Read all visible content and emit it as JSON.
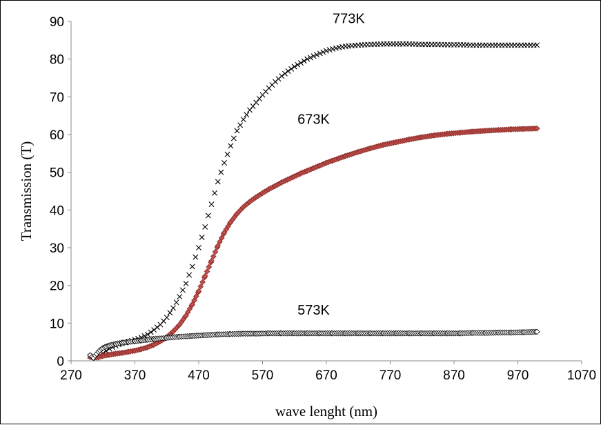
{
  "chart_data": {
    "type": "scatter",
    "title": "",
    "xlabel": "wave lenght (nm)",
    "ylabel": "Transmission (T)",
    "xlim": [
      270,
      1070
    ],
    "ylim": [
      0,
      90
    ],
    "xticks": [
      270,
      370,
      470,
      570,
      670,
      770,
      870,
      970,
      1070
    ],
    "yticks": [
      0,
      10,
      20,
      30,
      40,
      50,
      60,
      70,
      80,
      90
    ],
    "grid": false,
    "legend": "none",
    "series": [
      {
        "name": "773K",
        "marker": "cross",
        "color": "#000000",
        "points": [
          [
            300,
            1.2
          ],
          [
            310,
            0.8
          ],
          [
            320,
            2.0
          ],
          [
            330,
            3.2
          ],
          [
            340,
            4.0
          ],
          [
            350,
            4.6
          ],
          [
            360,
            5.1
          ],
          [
            370,
            5.6
          ],
          [
            380,
            6.2
          ],
          [
            390,
            7.0
          ],
          [
            400,
            8.2
          ],
          [
            410,
            9.6
          ],
          [
            420,
            11.5
          ],
          [
            430,
            14.0
          ],
          [
            440,
            17.0
          ],
          [
            450,
            20.5
          ],
          [
            460,
            25.0
          ],
          [
            470,
            30.0
          ],
          [
            480,
            35.5
          ],
          [
            490,
            41.5
          ],
          [
            500,
            47.5
          ],
          [
            510,
            52.5
          ],
          [
            520,
            57.0
          ],
          [
            530,
            61.0
          ],
          [
            540,
            64.0
          ],
          [
            550,
            66.5
          ],
          [
            560,
            68.5
          ],
          [
            570,
            70.5
          ],
          [
            580,
            72.3
          ],
          [
            590,
            74.0
          ],
          [
            600,
            75.5
          ],
          [
            610,
            76.8
          ],
          [
            620,
            78.0
          ],
          [
            630,
            79.0
          ],
          [
            640,
            80.0
          ],
          [
            650,
            80.8
          ],
          [
            660,
            81.5
          ],
          [
            670,
            82.2
          ],
          [
            680,
            82.7
          ],
          [
            690,
            83.1
          ],
          [
            700,
            83.4
          ],
          [
            720,
            83.7
          ],
          [
            740,
            83.9
          ],
          [
            760,
            84.0
          ],
          [
            780,
            84.0
          ],
          [
            800,
            84.0
          ],
          [
            820,
            83.9
          ],
          [
            840,
            83.9
          ],
          [
            860,
            83.8
          ],
          [
            880,
            83.8
          ],
          [
            900,
            83.7
          ],
          [
            920,
            83.7
          ],
          [
            940,
            83.7
          ],
          [
            960,
            83.7
          ],
          [
            980,
            83.7
          ],
          [
            1000,
            83.7
          ]
        ]
      },
      {
        "name": "673K",
        "marker": "filled-diamond",
        "color": "#c0504d",
        "points": [
          [
            300,
            1.0
          ],
          [
            310,
            0.9
          ],
          [
            320,
            1.3
          ],
          [
            330,
            1.6
          ],
          [
            340,
            1.9
          ],
          [
            350,
            2.1
          ],
          [
            360,
            2.4
          ],
          [
            370,
            2.7
          ],
          [
            380,
            3.1
          ],
          [
            390,
            3.6
          ],
          [
            400,
            4.3
          ],
          [
            410,
            5.2
          ],
          [
            420,
            6.3
          ],
          [
            430,
            7.8
          ],
          [
            440,
            9.6
          ],
          [
            450,
            12.0
          ],
          [
            460,
            15.0
          ],
          [
            470,
            18.5
          ],
          [
            480,
            22.5
          ],
          [
            490,
            26.5
          ],
          [
            500,
            30.5
          ],
          [
            510,
            34.0
          ],
          [
            520,
            36.8
          ],
          [
            530,
            39.0
          ],
          [
            540,
            40.8
          ],
          [
            550,
            42.2
          ],
          [
            560,
            43.4
          ],
          [
            570,
            44.5
          ],
          [
            580,
            45.5
          ],
          [
            590,
            46.4
          ],
          [
            600,
            47.3
          ],
          [
            610,
            48.1
          ],
          [
            620,
            48.9
          ],
          [
            630,
            49.7
          ],
          [
            640,
            50.4
          ],
          [
            650,
            51.1
          ],
          [
            660,
            51.8
          ],
          [
            670,
            52.5
          ],
          [
            680,
            53.1
          ],
          [
            690,
            53.7
          ],
          [
            700,
            54.3
          ],
          [
            720,
            55.4
          ],
          [
            740,
            56.4
          ],
          [
            760,
            57.3
          ],
          [
            780,
            58.0
          ],
          [
            800,
            58.7
          ],
          [
            820,
            59.3
          ],
          [
            840,
            59.8
          ],
          [
            860,
            60.2
          ],
          [
            880,
            60.5
          ],
          [
            900,
            60.8
          ],
          [
            920,
            61.0
          ],
          [
            940,
            61.2
          ],
          [
            960,
            61.4
          ],
          [
            980,
            61.5
          ],
          [
            1000,
            61.6
          ]
        ]
      },
      {
        "name": "573K",
        "marker": "open-diamond",
        "color": "#000000",
        "points": [
          [
            300,
            1.5
          ],
          [
            305,
            0.8
          ],
          [
            310,
            1.8
          ],
          [
            315,
            2.8
          ],
          [
            320,
            3.4
          ],
          [
            325,
            3.8
          ],
          [
            330,
            4.1
          ],
          [
            340,
            4.5
          ],
          [
            350,
            4.8
          ],
          [
            360,
            5.0
          ],
          [
            370,
            5.2
          ],
          [
            380,
            5.4
          ],
          [
            390,
            5.6
          ],
          [
            400,
            5.8
          ],
          [
            420,
            6.1
          ],
          [
            440,
            6.4
          ],
          [
            460,
            6.6
          ],
          [
            480,
            6.8
          ],
          [
            500,
            7.0
          ],
          [
            520,
            7.1
          ],
          [
            540,
            7.2
          ],
          [
            560,
            7.2
          ],
          [
            580,
            7.3
          ],
          [
            600,
            7.3
          ],
          [
            620,
            7.3
          ],
          [
            640,
            7.3
          ],
          [
            660,
            7.3
          ],
          [
            680,
            7.3
          ],
          [
            700,
            7.3
          ],
          [
            720,
            7.3
          ],
          [
            740,
            7.3
          ],
          [
            760,
            7.3
          ],
          [
            780,
            7.3
          ],
          [
            800,
            7.3
          ],
          [
            820,
            7.3
          ],
          [
            840,
            7.3
          ],
          [
            860,
            7.3
          ],
          [
            880,
            7.3
          ],
          [
            900,
            7.4
          ],
          [
            920,
            7.4
          ],
          [
            940,
            7.5
          ],
          [
            960,
            7.5
          ],
          [
            980,
            7.6
          ],
          [
            1000,
            7.7
          ]
        ]
      }
    ]
  }
}
